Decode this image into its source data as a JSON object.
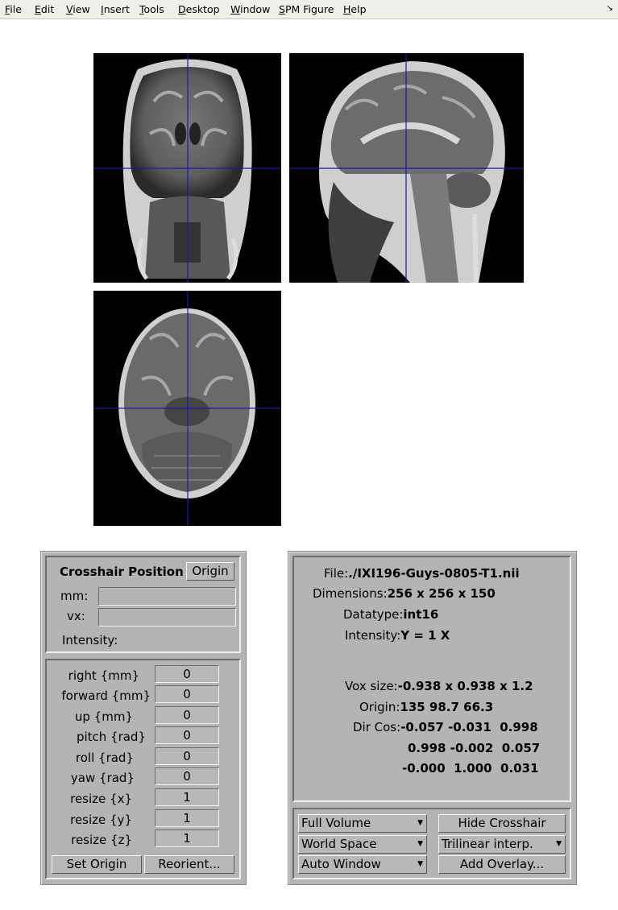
{
  "menubar": {
    "items": [
      "File",
      "Edit",
      "View",
      "Insert",
      "Tools",
      "Desktop",
      "Window",
      "SPM Figure",
      "Help"
    ],
    "mnemonics": [
      "F",
      "E",
      "V",
      "I",
      "T",
      "D",
      "W",
      "S",
      "H"
    ],
    "dock_icon": "dock-arrow-icon"
  },
  "views": {
    "coronal": "coronal-slice",
    "sagittal": "sagittal-slice",
    "axial": "axial-slice",
    "crosshair_color": "#1a1aa8"
  },
  "crosshair_panel": {
    "title": "Crosshair Position",
    "origin_button": "Origin",
    "mm_label": "mm:",
    "vx_label": "vx:",
    "intensity_label": "Intensity:",
    "mm_value": "",
    "vx_value": ""
  },
  "reorient_panel": {
    "params": [
      {
        "label": "right  {mm}",
        "value": "0"
      },
      {
        "label": "forward  {mm}",
        "value": "0"
      },
      {
        "label": "up  {mm}",
        "value": "0"
      },
      {
        "label": "pitch  {rad}",
        "value": "0"
      },
      {
        "label": "roll  {rad}",
        "value": "0"
      },
      {
        "label": "yaw  {rad}",
        "value": "0"
      },
      {
        "label": "resize  {x}",
        "value": "1"
      },
      {
        "label": "resize  {y}",
        "value": "1"
      },
      {
        "label": "resize  {z}",
        "value": "1"
      }
    ],
    "set_origin_button": "Set Origin",
    "reorient_button": "Reorient..."
  },
  "info_panel": {
    "file_label": "File:",
    "file_value": "./IXI196-Guys-0805-T1.nii",
    "dimensions_label": "Dimensions:",
    "dimensions_value": "256 x 256 x 150",
    "datatype_label": "Datatype:",
    "datatype_value": "int16",
    "intensity_label": "Intensity:",
    "intensity_value": "Y = 1 X",
    "voxsize_label": "Vox size:",
    "voxsize_value": "-0.938 x 0.938 x 1.2",
    "origin_label": "Origin:",
    "origin_value": "135 98.7 66.3",
    "dircos_label": "Dir Cos:",
    "dircos_row1": "-0.057 -0.031  0.998",
    "dircos_row2": "0.998 -0.002  0.057",
    "dircos_row3": "-0.000  1.000  0.031"
  },
  "controls": {
    "volume_select": "Full Volume",
    "space_select": "World Space",
    "window_select": "Auto Window",
    "hide_crosshair_button": "Hide Crosshair",
    "interp_select": "Trilinear interp.",
    "add_overlay_button": "Add Overlay..."
  }
}
